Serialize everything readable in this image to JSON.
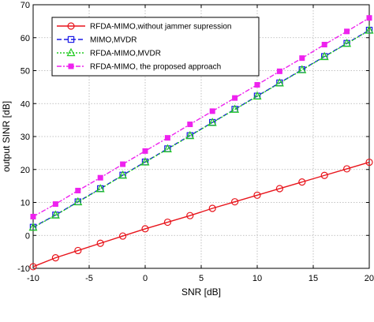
{
  "chart_data": {
    "type": "line",
    "xlabel": "SNR [dB]",
    "ylabel": "output SINR [dB]",
    "xlim": [
      -10,
      20
    ],
    "ylim": [
      -10,
      70
    ],
    "xticks": [
      "-10",
      "-5",
      "0",
      "5",
      "10",
      "15",
      "20"
    ],
    "yticks": [
      "-10",
      "0",
      "10",
      "20",
      "30",
      "40",
      "50",
      "60",
      "70"
    ],
    "grid": true,
    "legend_position": "top-left",
    "x": [
      -10,
      -8,
      -6,
      -4,
      -2,
      0,
      2,
      4,
      6,
      8,
      10,
      12,
      14,
      16,
      18,
      20
    ],
    "series": [
      {
        "name": "RFDA-MIMO,without jammer supression",
        "color": "#e8141b",
        "dash": "solid",
        "marker": "circle",
        "values": [
          -9.5,
          -6.8,
          -4.6,
          -2.4,
          -0.2,
          2.0,
          4.0,
          6.0,
          8.2,
          10.2,
          12.2,
          14.2,
          16.2,
          18.2,
          20.2,
          22.2
        ]
      },
      {
        "name": "MIMO,MVDR",
        "color": "#1a1ae6",
        "dash": "dashed",
        "marker": "square",
        "values": [
          2.5,
          6.2,
          10.2,
          14.2,
          18.3,
          22.3,
          26.3,
          30.3,
          34.3,
          38.3,
          42.3,
          46.3,
          50.3,
          54.3,
          58.3,
          62.3
        ]
      },
      {
        "name": "RFDA-MIMO,MVDR",
        "color": "#22cc22",
        "dash": "dotted",
        "marker": "triangle",
        "values": [
          2.4,
          6.1,
          10.1,
          14.1,
          18.2,
          22.2,
          26.2,
          30.2,
          34.2,
          38.2,
          42.2,
          46.2,
          50.2,
          54.2,
          58.2,
          62.2
        ]
      },
      {
        "name": "RFDA-MIMO, the proposed approach",
        "color": "#ee22ee",
        "dash": "dashdot",
        "marker": "square-filled",
        "values": [
          5.7,
          9.5,
          13.6,
          17.5,
          21.6,
          25.6,
          29.6,
          33.7,
          37.7,
          41.7,
          45.7,
          49.8,
          53.8,
          57.9,
          61.9,
          66.0
        ]
      }
    ]
  }
}
